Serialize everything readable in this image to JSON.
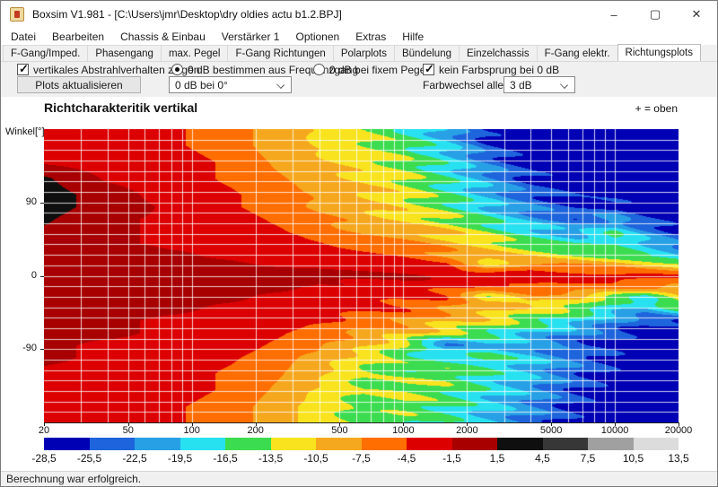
{
  "window": {
    "title": "Boxsim V1.981 - [C:\\Users\\jmr\\Desktop\\dry oldies actu b1.2.BPJ]",
    "controls": {
      "minimize": "–",
      "maximize": "▢",
      "close": "✕"
    }
  },
  "menu": {
    "items": [
      "Datei",
      "Bearbeiten",
      "Chassis & Einbau",
      "Verstärker 1",
      "Optionen",
      "Extras",
      "Hilfe"
    ]
  },
  "tabs": {
    "items": [
      "F-Gang/Imped.",
      "Phasengang",
      "max. Pegel",
      "F-Gang Richtungen",
      "Polarplots",
      "Bündelung",
      "Einzelchassis",
      "F-Gang elektr.",
      "Richtungsplots"
    ],
    "active": "Richtungsplots"
  },
  "controls": {
    "show_vertical_checkbox": {
      "label": "vertikales Abstrahlverhalten zeigen",
      "checked": true
    },
    "update_button": {
      "label": "Plots aktualisieren"
    },
    "db_from_response_radio": {
      "label": "0 dB bestimmen aus Frequenzgang",
      "selected": true
    },
    "db_reference_select": {
      "value": "0 dB bei 0°"
    },
    "db_fixed_radio": {
      "label": "0 dB bei fixem Pegel",
      "selected": false
    },
    "no_color_jump_checkbox": {
      "label": "kein Farbsprung bei 0 dB",
      "checked": true
    },
    "color_step_label": "Farbwechsel  alle",
    "color_step_select": {
      "value": "3 dB"
    }
  },
  "chart_data": {
    "type": "heatmap",
    "title": "Richtcharakteritik vertikal",
    "corner_note": "+ = oben",
    "ylabel": "Winkel[°]",
    "x_axis": {
      "scale": "log",
      "unit": "Hz",
      "min": 20,
      "max": 20000,
      "tick_labels": [
        20,
        50,
        100,
        200,
        500,
        1000,
        2000,
        5000,
        10000,
        20000
      ]
    },
    "y_axis": {
      "unit": "deg",
      "min": -180,
      "max": 180,
      "tick_labels": [
        90,
        0,
        -90
      ]
    },
    "grid_freq_hz": [
      20,
      40,
      80,
      150,
      250,
      400,
      650,
      1000,
      1600,
      2500,
      4000,
      6500,
      10000,
      14000,
      20000
    ],
    "grid_angle_deg": [
      180,
      160,
      140,
      120,
      100,
      85,
      70,
      55,
      40,
      25,
      15,
      0,
      -15,
      -25,
      -40,
      -55,
      -70,
      -85,
      -100,
      -120,
      -140,
      -160,
      -180
    ],
    "values_db": [
      [
        -3,
        -3,
        -4,
        -6,
        -9,
        -11,
        -13,
        -16,
        -21,
        -27,
        -29,
        -29,
        -29,
        -29,
        -29
      ],
      [
        -3,
        -3,
        -4,
        -6,
        -9,
        -11,
        -13,
        -15,
        -19,
        -25,
        -29,
        -29,
        -29,
        -29,
        -29
      ],
      [
        -2,
        -3,
        -3,
        -5,
        -8,
        -10,
        -12,
        -14,
        -18,
        -23,
        -27,
        -29,
        -29,
        -29,
        -29
      ],
      [
        2,
        -2,
        -3,
        -5,
        -7,
        -9,
        -11,
        -13,
        -17,
        -21,
        -26,
        -28,
        -29,
        -29,
        -29
      ],
      [
        3,
        0,
        -3,
        -4,
        -6,
        -8,
        -10,
        -12,
        -16,
        -20,
        -24,
        -27,
        -28,
        -29,
        -29
      ],
      [
        3,
        0,
        -2,
        -4,
        -6,
        -8,
        -10,
        -12,
        -15,
        -19,
        -23,
        -26,
        -25,
        -27,
        -29
      ],
      [
        2,
        -1,
        -2,
        -3,
        -5,
        -7,
        -9,
        -11,
        -13,
        -17,
        -21,
        -24,
        -22,
        -26,
        -28
      ],
      [
        1,
        -1,
        -2,
        -3,
        -4,
        -6,
        -8,
        -9,
        -11,
        -14,
        -18,
        -21,
        -17,
        -22,
        -26
      ],
      [
        -1,
        -1,
        -2,
        -2,
        -3,
        -4,
        -6,
        -7,
        -9,
        -12,
        -15,
        -17,
        -16,
        -19,
        -23
      ],
      [
        0,
        0,
        -1,
        -2,
        -3,
        -3,
        -4,
        -5,
        -7,
        -9,
        -11,
        -13,
        -15,
        -17,
        -20
      ],
      [
        0,
        0,
        -1,
        -1,
        -2,
        -2,
        -3,
        -4,
        -5,
        -12,
        -7,
        -8,
        -9,
        -11,
        -13
      ],
      [
        0,
        0,
        0,
        0,
        0,
        -1,
        -1,
        -1,
        -2,
        -2,
        -2,
        -3,
        -3,
        -3,
        -4
      ],
      [
        0,
        0,
        0,
        -1,
        -1,
        -2,
        -2,
        -3,
        -4,
        -6,
        -5,
        -6,
        -7,
        -8,
        -9
      ],
      [
        0,
        0,
        -1,
        -1,
        -2,
        -2,
        -3,
        -4,
        -5,
        -13,
        -8,
        -10,
        -15,
        -17,
        -11
      ],
      [
        -1,
        -1,
        -1,
        -2,
        -2,
        -3,
        -4,
        -5,
        -7,
        -9,
        -12,
        -14,
        -18,
        -20,
        -15
      ],
      [
        -1,
        -1,
        -2,
        -2,
        -3,
        -4,
        -6,
        -7,
        -10,
        -12,
        -15,
        -18,
        -22,
        -25,
        -26
      ],
      [
        -1,
        -1,
        -2,
        -3,
        -4,
        -6,
        -8,
        -10,
        -13,
        -16,
        -19,
        -22,
        -25,
        -27,
        -29
      ],
      [
        -1,
        -2,
        -2,
        -3,
        -5,
        -7,
        -10,
        -14,
        -23,
        -19,
        -22,
        -25,
        -27,
        -29,
        -29
      ],
      [
        -1,
        -2,
        -3,
        -4,
        -6,
        -9,
        -12,
        -15,
        -17,
        -16,
        -19,
        -23,
        -26,
        -29,
        -29
      ],
      [
        -2,
        -2,
        -3,
        -5,
        -7,
        -10,
        -14,
        -15,
        -14,
        -17,
        -20,
        -24,
        -27,
        -29,
        -29
      ],
      [
        -2,
        -3,
        -3,
        -5,
        -8,
        -11,
        -14,
        -13,
        -15,
        -18,
        -21,
        -25,
        -28,
        -29,
        -29
      ],
      [
        -3,
        -3,
        -4,
        -6,
        -9,
        -12,
        -15,
        -14,
        -16,
        -19,
        -22,
        -26,
        -29,
        -29,
        -29
      ],
      [
        -3,
        -3,
        -4,
        -6,
        -9,
        -12,
        -15,
        -15,
        -17,
        -20,
        -23,
        -27,
        -29,
        -29,
        -29
      ]
    ],
    "color_scale": {
      "step_db": 3,
      "boundary_labels": [
        "-28,5",
        "-25,5",
        "-22,5",
        "-19,5",
        "-16,5",
        "-13,5",
        "-10,5",
        "-7,5",
        "-4,5",
        "-1,5",
        "1,5",
        "4,5",
        "7,5",
        "10,5",
        "13,5"
      ],
      "boundaries_db": [
        -28.5,
        -25.5,
        -22.5,
        -19.5,
        -16.5,
        -13.5,
        -10.5,
        -7.5,
        -4.5,
        -1.5,
        1.5,
        4.5,
        7.5,
        10.5,
        13.5
      ],
      "colors": [
        "#0000b4",
        "#1e64dc",
        "#28a0e6",
        "#28e1f0",
        "#3cdc50",
        "#f8e31e",
        "#f5a81e",
        "#ff6e00",
        "#dc0000",
        "#a80000",
        "#0f0f0f",
        "#373737",
        "#a0a0a0",
        "#dcdcdc"
      ]
    }
  },
  "statusbar": {
    "text": "Berechnung war erfolgreich."
  }
}
